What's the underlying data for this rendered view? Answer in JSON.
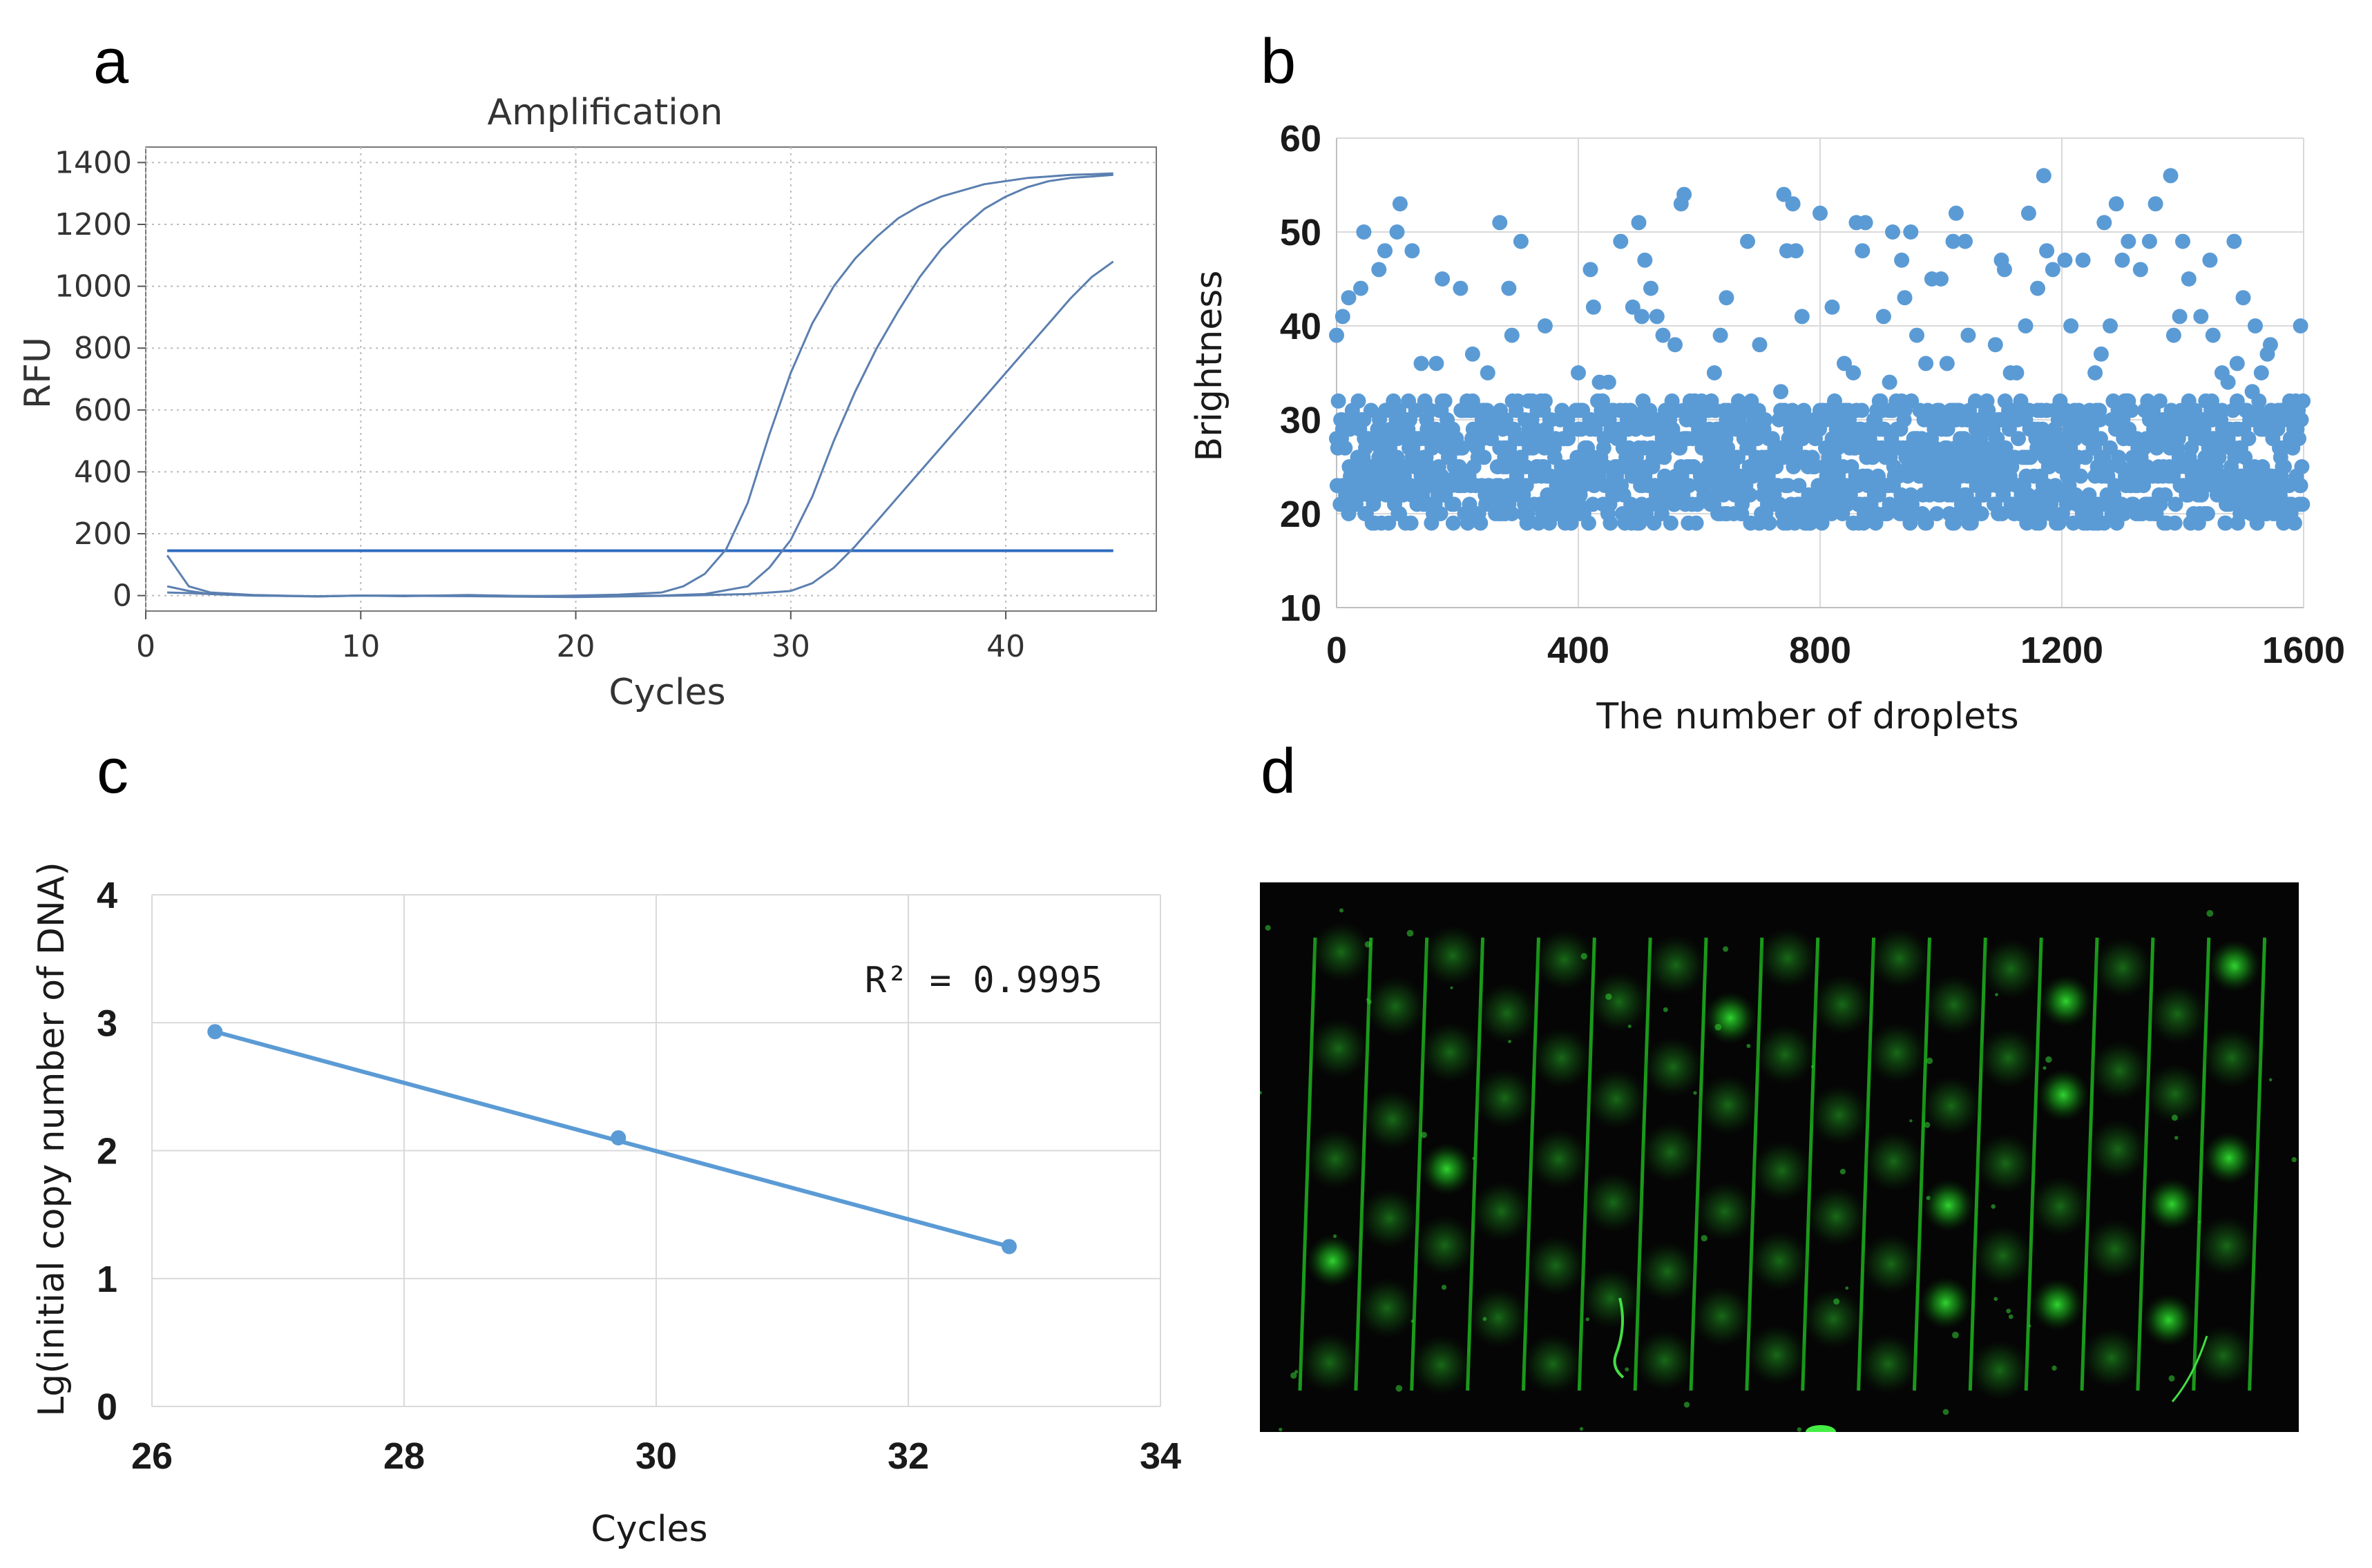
{
  "panels": {
    "a": {
      "letter": "a"
    },
    "b": {
      "letter": "b"
    },
    "c": {
      "letter": "c"
    },
    "d": {
      "letter": "d"
    }
  },
  "chart_data": [
    {
      "panel": "a",
      "type": "line",
      "title": "Amplification",
      "xlabel": "Cycles",
      "ylabel": "RFU",
      "xlim": [
        0,
        47
      ],
      "ylim": [
        -50,
        1450
      ],
      "xticks": [
        0,
        10,
        20,
        30,
        40
      ],
      "yticks": [
        0,
        200,
        400,
        600,
        800,
        1000,
        1200,
        1400
      ],
      "grid": true,
      "line_color": "#5b7fb0",
      "threshold": 145,
      "threshold_color": "#2e6cc0",
      "series": [
        {
          "x": [
            1,
            2,
            3,
            5,
            8,
            10,
            12,
            15,
            18,
            20,
            22,
            24,
            25,
            26,
            27,
            28,
            29,
            30,
            31,
            32,
            33,
            34,
            35,
            36,
            37,
            38,
            39,
            40,
            41,
            42,
            43,
            44,
            45
          ],
          "y": [
            130,
            30,
            10,
            2,
            -3,
            0,
            -2,
            2,
            -2,
            0,
            3,
            10,
            30,
            70,
            150,
            300,
            520,
            720,
            880,
            1000,
            1090,
            1160,
            1220,
            1260,
            1290,
            1310,
            1330,
            1340,
            1350,
            1355,
            1360,
            1362,
            1365
          ]
        },
        {
          "x": [
            1,
            2,
            3,
            5,
            8,
            10,
            15,
            20,
            24,
            26,
            28,
            29,
            30,
            31,
            32,
            33,
            34,
            35,
            36,
            37,
            38,
            39,
            40,
            41,
            42,
            43,
            44,
            45
          ],
          "y": [
            30,
            15,
            5,
            0,
            -2,
            0,
            0,
            -2,
            0,
            5,
            30,
            90,
            180,
            320,
            500,
            660,
            800,
            920,
            1030,
            1120,
            1190,
            1250,
            1290,
            1320,
            1340,
            1350,
            1355,
            1360
          ]
        },
        {
          "x": [
            1,
            2,
            3,
            5,
            8,
            10,
            15,
            20,
            25,
            28,
            30,
            31,
            32,
            33,
            34,
            35,
            36,
            37,
            38,
            39,
            40,
            41,
            42,
            43,
            44,
            45
          ],
          "y": [
            10,
            8,
            5,
            0,
            -3,
            0,
            -2,
            -5,
            0,
            5,
            15,
            40,
            90,
            160,
            240,
            320,
            400,
            480,
            560,
            640,
            720,
            800,
            880,
            960,
            1030,
            1080
          ]
        }
      ]
    },
    {
      "panel": "b",
      "type": "scatter",
      "xlabel": "The number of droplets",
      "ylabel": "Brightness",
      "xlim": [
        0,
        1600
      ],
      "ylim": [
        10,
        60
      ],
      "xticks": [
        0,
        400,
        800,
        1200,
        1600
      ],
      "yticks": [
        10,
        20,
        30,
        40,
        50,
        60
      ],
      "grid": true,
      "marker_color": "#5b9bd5",
      "n_points": 1600,
      "bulk_range": [
        19,
        32
      ],
      "outliers": [
        [
          0,
          39
        ],
        [
          10,
          41
        ],
        [
          20,
          43
        ],
        [
          40,
          44
        ],
        [
          45,
          50
        ],
        [
          70,
          46
        ],
        [
          80,
          48
        ],
        [
          100,
          50
        ],
        [
          105,
          53
        ],
        [
          125,
          48
        ],
        [
          140,
          36
        ],
        [
          165,
          36
        ],
        [
          175,
          45
        ],
        [
          205,
          44
        ],
        [
          225,
          37
        ],
        [
          250,
          35
        ],
        [
          270,
          51
        ],
        [
          285,
          44
        ],
        [
          290,
          39
        ],
        [
          305,
          49
        ],
        [
          345,
          40
        ],
        [
          400,
          35
        ],
        [
          420,
          46
        ],
        [
          425,
          42
        ],
        [
          435,
          34
        ],
        [
          450,
          34
        ],
        [
          470,
          49
        ],
        [
          490,
          42
        ],
        [
          500,
          51
        ],
        [
          505,
          41
        ],
        [
          510,
          47
        ],
        [
          520,
          44
        ],
        [
          530,
          41
        ],
        [
          540,
          39
        ],
        [
          560,
          38
        ],
        [
          570,
          53
        ],
        [
          575,
          54
        ],
        [
          625,
          35
        ],
        [
          635,
          39
        ],
        [
          645,
          43
        ],
        [
          680,
          49
        ],
        [
          700,
          38
        ],
        [
          735,
          33
        ],
        [
          740,
          54
        ],
        [
          745,
          48
        ],
        [
          755,
          53
        ],
        [
          760,
          48
        ],
        [
          770,
          41
        ],
        [
          800,
          52
        ],
        [
          820,
          42
        ],
        [
          840,
          36
        ],
        [
          855,
          35
        ],
        [
          860,
          51
        ],
        [
          870,
          48
        ],
        [
          875,
          51
        ],
        [
          905,
          41
        ],
        [
          915,
          34
        ],
        [
          920,
          50
        ],
        [
          935,
          47
        ],
        [
          940,
          43
        ],
        [
          950,
          50
        ],
        [
          960,
          39
        ],
        [
          975,
          36
        ],
        [
          985,
          45
        ],
        [
          1000,
          45
        ],
        [
          1010,
          36
        ],
        [
          1020,
          49
        ],
        [
          1025,
          52
        ],
        [
          1040,
          49
        ],
        [
          1045,
          39
        ],
        [
          1090,
          38
        ],
        [
          1100,
          47
        ],
        [
          1105,
          46
        ],
        [
          1115,
          35
        ],
        [
          1125,
          35
        ],
        [
          1140,
          40
        ],
        [
          1145,
          52
        ],
        [
          1160,
          44
        ],
        [
          1170,
          56
        ],
        [
          1175,
          48
        ],
        [
          1185,
          46
        ],
        [
          1205,
          47
        ],
        [
          1215,
          40
        ],
        [
          1235,
          47
        ],
        [
          1255,
          35
        ],
        [
          1265,
          37
        ],
        [
          1270,
          51
        ],
        [
          1280,
          40
        ],
        [
          1290,
          53
        ],
        [
          1300,
          47
        ],
        [
          1310,
          49
        ],
        [
          1330,
          46
        ],
        [
          1345,
          49
        ],
        [
          1355,
          53
        ],
        [
          1380,
          56
        ],
        [
          1385,
          39
        ],
        [
          1395,
          41
        ],
        [
          1400,
          49
        ],
        [
          1410,
          45
        ],
        [
          1430,
          41
        ],
        [
          1445,
          47
        ],
        [
          1450,
          39
        ],
        [
          1465,
          35
        ],
        [
          1475,
          34
        ],
        [
          1485,
          49
        ],
        [
          1490,
          36
        ],
        [
          1500,
          43
        ],
        [
          1515,
          33
        ],
        [
          1520,
          40
        ],
        [
          1530,
          35
        ],
        [
          1540,
          37
        ],
        [
          1545,
          38
        ],
        [
          1595,
          40
        ]
      ]
    },
    {
      "panel": "c",
      "type": "scatter",
      "xlabel": "Cycles",
      "ylabel": "Lg(initial copy number of DNA)",
      "xlim": [
        26,
        34
      ],
      "ylim": [
        0,
        4
      ],
      "xticks": [
        26,
        28,
        30,
        32,
        34
      ],
      "yticks": [
        0,
        1,
        2,
        3,
        4
      ],
      "grid": true,
      "marker_color": "#5b9bd5",
      "points": [
        [
          26.5,
          2.93
        ],
        [
          29.7,
          2.1
        ],
        [
          32.8,
          1.25
        ]
      ],
      "trendline": [
        [
          26.5,
          2.93
        ],
        [
          32.8,
          1.25
        ]
      ],
      "annotation": "R² = 0.9995"
    }
  ],
  "image_d": {
    "background": "#050505",
    "glow_color": "#22cc22",
    "n_stripes": 18,
    "n_droplets_per_column": 5
  }
}
